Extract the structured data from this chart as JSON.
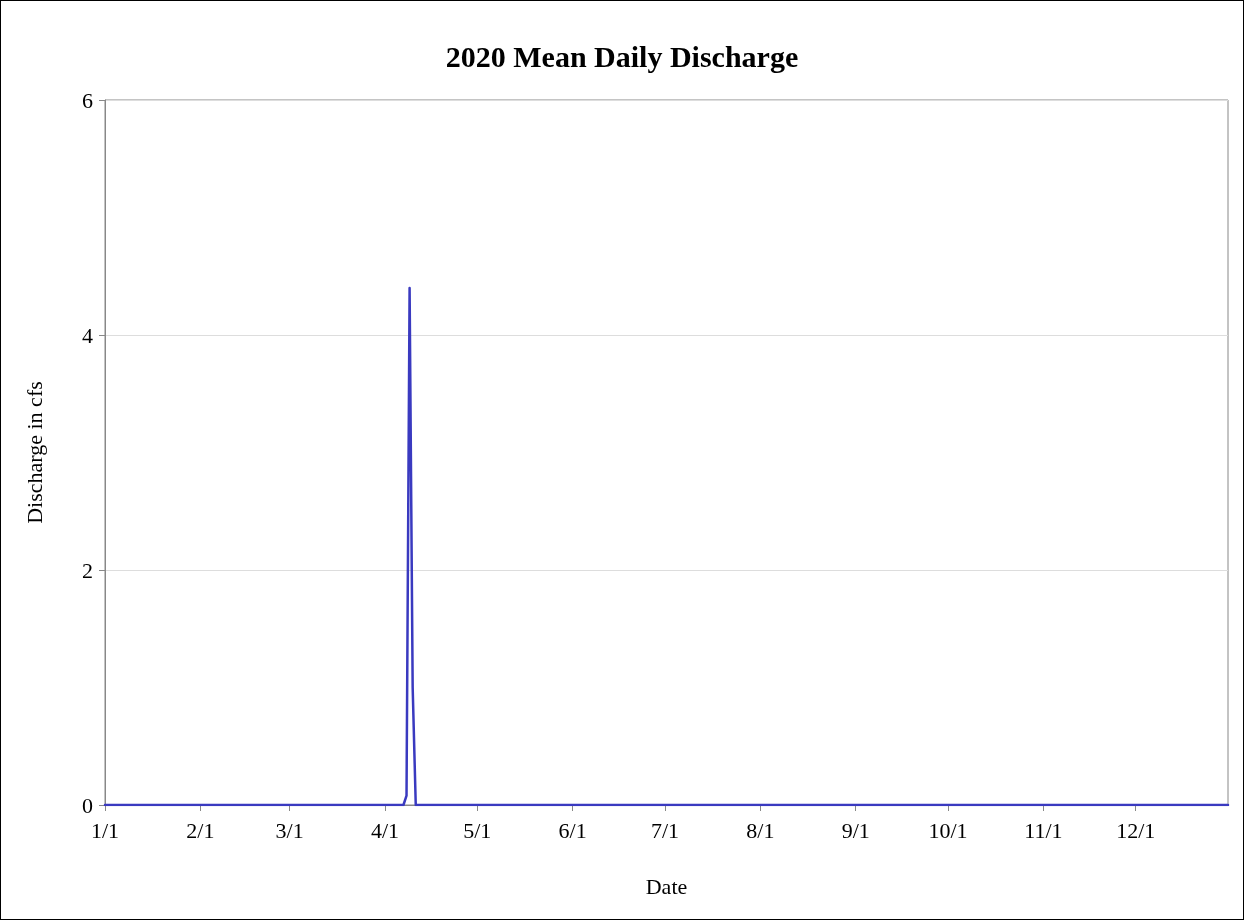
{
  "chart_data": {
    "type": "line",
    "title": "2020 Mean Daily Discharge",
    "xlabel": "Date",
    "ylabel": "Discharge in cfs",
    "x": [
      "2020-01-01",
      "2020-02-01",
      "2020-03-01",
      "2020-04-01",
      "2020-04-07",
      "2020-04-08",
      "2020-04-09",
      "2020-04-10",
      "2020-04-11",
      "2020-05-01",
      "2020-06-01",
      "2020-07-01",
      "2020-08-01",
      "2020-09-01",
      "2020-10-01",
      "2020-11-01",
      "2020-12-01",
      "2020-12-31"
    ],
    "series": [
      {
        "color": "#3a3ac0",
        "values": [
          0,
          0,
          0,
          0,
          0,
          0.08,
          4.4,
          1.0,
          0,
          0,
          0,
          0,
          0,
          0,
          0,
          0,
          0,
          0
        ]
      }
    ],
    "xlim": [
      "2020-01-01",
      "2020-12-31"
    ],
    "xticks": [
      {
        "value": "2020-01-01",
        "label": "1/1"
      },
      {
        "value": "2020-02-01",
        "label": "2/1"
      },
      {
        "value": "2020-03-01",
        "label": "3/1"
      },
      {
        "value": "2020-04-01",
        "label": "4/1"
      },
      {
        "value": "2020-05-01",
        "label": "5/1"
      },
      {
        "value": "2020-06-01",
        "label": "6/1"
      },
      {
        "value": "2020-07-01",
        "label": "7/1"
      },
      {
        "value": "2020-08-01",
        "label": "8/1"
      },
      {
        "value": "2020-09-01",
        "label": "9/1"
      },
      {
        "value": "2020-10-01",
        "label": "10/1"
      },
      {
        "value": "2020-11-01",
        "label": "11/1"
      },
      {
        "value": "2020-12-01",
        "label": "12/1"
      }
    ],
    "ylim": [
      0,
      6
    ],
    "yticks": [
      0,
      2,
      4,
      6
    ],
    "grid": "y"
  }
}
